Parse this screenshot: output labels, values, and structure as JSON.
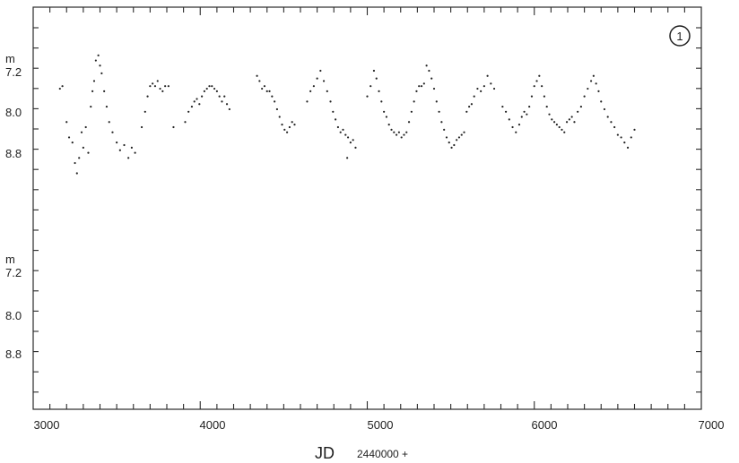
{
  "chart_data": {
    "type": "scatter",
    "title": "",
    "panel_badge": "1",
    "xlabel": "JD",
    "xlabel_suffix": "2440000 +",
    "xlim": [
      3000,
      7000
    ],
    "x_ticks": [
      "3000",
      "4000",
      "5000",
      "6000",
      "7000"
    ],
    "x_tick_values": [
      3000,
      4000,
      5000,
      6000,
      7000
    ],
    "grid": false,
    "y_unit": "m",
    "y_inverted": true,
    "panels": [
      {
        "name": "",
        "ylim": [
          6.6,
          9.6
        ],
        "y_ticks": [
          "7.2",
          "8.0",
          "8.8"
        ],
        "y_tick_values": [
          7.2,
          8.0,
          8.8
        ],
        "points": [
          [
            3160,
            7.55
          ],
          [
            3175,
            7.5
          ],
          [
            3200,
            8.2
          ],
          [
            3215,
            8.5
          ],
          [
            3235,
            8.6
          ],
          [
            3250,
            9.0
          ],
          [
            3262,
            9.2
          ],
          [
            3275,
            8.9
          ],
          [
            3290,
            8.4
          ],
          [
            3300,
            8.7
          ],
          [
            3315,
            8.3
          ],
          [
            3330,
            8.8
          ],
          [
            3345,
            7.9
          ],
          [
            3355,
            7.6
          ],
          [
            3365,
            7.4
          ],
          [
            3375,
            7.0
          ],
          [
            3390,
            6.9
          ],
          [
            3400,
            7.1
          ],
          [
            3410,
            7.25
          ],
          [
            3425,
            7.6
          ],
          [
            3440,
            7.9
          ],
          [
            3455,
            8.2
          ],
          [
            3475,
            8.4
          ],
          [
            3500,
            8.6
          ],
          [
            3520,
            8.75
          ],
          [
            3545,
            8.65
          ],
          [
            3570,
            8.9
          ],
          [
            3590,
            8.7
          ],
          [
            3610,
            8.8
          ],
          [
            3650,
            8.3
          ],
          [
            3670,
            8.0
          ],
          [
            3685,
            7.7
          ],
          [
            3700,
            7.5
          ],
          [
            3715,
            7.45
          ],
          [
            3730,
            7.5
          ],
          [
            3745,
            7.4
          ],
          [
            3760,
            7.55
          ],
          [
            3775,
            7.6
          ],
          [
            3790,
            7.5
          ],
          [
            3810,
            7.5
          ],
          [
            3840,
            8.3
          ],
          [
            3910,
            8.2
          ],
          [
            3930,
            8.0
          ],
          [
            3950,
            7.9
          ],
          [
            3965,
            7.8
          ],
          [
            3980,
            7.75
          ],
          [
            3995,
            7.85
          ],
          [
            4010,
            7.7
          ],
          [
            4025,
            7.6
          ],
          [
            4040,
            7.55
          ],
          [
            4055,
            7.5
          ],
          [
            4070,
            7.5
          ],
          [
            4085,
            7.55
          ],
          [
            4100,
            7.6
          ],
          [
            4115,
            7.7
          ],
          [
            4130,
            7.8
          ],
          [
            4145,
            7.7
          ],
          [
            4160,
            7.85
          ],
          [
            4175,
            7.95
          ],
          [
            4340,
            7.3
          ],
          [
            4355,
            7.4
          ],
          [
            4370,
            7.55
          ],
          [
            4385,
            7.5
          ],
          [
            4400,
            7.6
          ],
          [
            4415,
            7.6
          ],
          [
            4430,
            7.7
          ],
          [
            4445,
            7.8
          ],
          [
            4460,
            7.95
          ],
          [
            4475,
            8.1
          ],
          [
            4490,
            8.25
          ],
          [
            4505,
            8.35
          ],
          [
            4520,
            8.4
          ],
          [
            4535,
            8.3
          ],
          [
            4550,
            8.2
          ],
          [
            4565,
            8.25
          ],
          [
            4640,
            7.8
          ],
          [
            4660,
            7.6
          ],
          [
            4680,
            7.5
          ],
          [
            4700,
            7.35
          ],
          [
            4720,
            7.2
          ],
          [
            4740,
            7.4
          ],
          [
            4760,
            7.6
          ],
          [
            4780,
            7.8
          ],
          [
            4795,
            8.0
          ],
          [
            4810,
            8.15
          ],
          [
            4825,
            8.3
          ],
          [
            4840,
            8.4
          ],
          [
            4855,
            8.35
          ],
          [
            4870,
            8.45
          ],
          [
            4885,
            8.5
          ],
          [
            4900,
            8.6
          ],
          [
            4915,
            8.55
          ],
          [
            4930,
            8.7
          ],
          [
            4880,
            8.9
          ],
          [
            5000,
            7.7
          ],
          [
            5020,
            7.5
          ],
          [
            5040,
            7.2
          ],
          [
            5055,
            7.35
          ],
          [
            5070,
            7.6
          ],
          [
            5085,
            7.8
          ],
          [
            5100,
            8.0
          ],
          [
            5115,
            8.1
          ],
          [
            5130,
            8.25
          ],
          [
            5145,
            8.35
          ],
          [
            5160,
            8.4
          ],
          [
            5175,
            8.45
          ],
          [
            5190,
            8.4
          ],
          [
            5205,
            8.5
          ],
          [
            5220,
            8.45
          ],
          [
            5235,
            8.4
          ],
          [
            5250,
            8.2
          ],
          [
            5265,
            8.0
          ],
          [
            5280,
            7.8
          ],
          [
            5295,
            7.6
          ],
          [
            5310,
            7.5
          ],
          [
            5325,
            7.5
          ],
          [
            5340,
            7.45
          ],
          [
            5355,
            7.1
          ],
          [
            5370,
            7.2
          ],
          [
            5385,
            7.35
          ],
          [
            5400,
            7.55
          ],
          [
            5415,
            7.8
          ],
          [
            5430,
            8.0
          ],
          [
            5445,
            8.2
          ],
          [
            5460,
            8.35
          ],
          [
            5475,
            8.5
          ],
          [
            5490,
            8.6
          ],
          [
            5505,
            8.7
          ],
          [
            5520,
            8.65
          ],
          [
            5535,
            8.55
          ],
          [
            5550,
            8.5
          ],
          [
            5565,
            8.45
          ],
          [
            5580,
            8.4
          ],
          [
            5595,
            8.0
          ],
          [
            5610,
            7.9
          ],
          [
            5625,
            7.85
          ],
          [
            5640,
            7.7
          ],
          [
            5660,
            7.55
          ],
          [
            5680,
            7.6
          ],
          [
            5700,
            7.5
          ],
          [
            5720,
            7.3
          ],
          [
            5740,
            7.45
          ],
          [
            5760,
            7.55
          ],
          [
            5810,
            7.9
          ],
          [
            5830,
            8.0
          ],
          [
            5850,
            8.15
          ],
          [
            5870,
            8.3
          ],
          [
            5890,
            8.4
          ],
          [
            5910,
            8.25
          ],
          [
            5925,
            8.1
          ],
          [
            5940,
            8.0
          ],
          [
            5955,
            8.05
          ],
          [
            5970,
            7.9
          ],
          [
            5985,
            7.7
          ],
          [
            6000,
            7.5
          ],
          [
            6015,
            7.4
          ],
          [
            6030,
            7.3
          ],
          [
            6045,
            7.5
          ],
          [
            6060,
            7.7
          ],
          [
            6075,
            7.9
          ],
          [
            6090,
            8.05
          ],
          [
            6105,
            8.15
          ],
          [
            6120,
            8.2
          ],
          [
            6135,
            8.25
          ],
          [
            6150,
            8.3
          ],
          [
            6165,
            8.35
          ],
          [
            6180,
            8.4
          ],
          [
            6195,
            8.2
          ],
          [
            6210,
            8.15
          ],
          [
            6225,
            8.1
          ],
          [
            6240,
            8.2
          ],
          [
            6260,
            8.0
          ],
          [
            6280,
            7.9
          ],
          [
            6300,
            7.7
          ],
          [
            6320,
            7.55
          ],
          [
            6340,
            7.4
          ],
          [
            6355,
            7.3
          ],
          [
            6370,
            7.45
          ],
          [
            6385,
            7.6
          ],
          [
            6400,
            7.8
          ],
          [
            6420,
            7.95
          ],
          [
            6440,
            8.1
          ],
          [
            6460,
            8.2
          ],
          [
            6480,
            8.3
          ],
          [
            6500,
            8.45
          ],
          [
            6520,
            8.5
          ],
          [
            6540,
            8.6
          ],
          [
            6560,
            8.7
          ],
          [
            6580,
            8.5
          ],
          [
            6600,
            8.35
          ]
        ]
      },
      {
        "name": "",
        "ylim": [
          6.6,
          9.6
        ],
        "y_ticks": [
          "7.2",
          "8.0",
          "8.8"
        ],
        "y_tick_values": [
          7.2,
          8.0,
          8.8
        ],
        "points": []
      }
    ]
  }
}
